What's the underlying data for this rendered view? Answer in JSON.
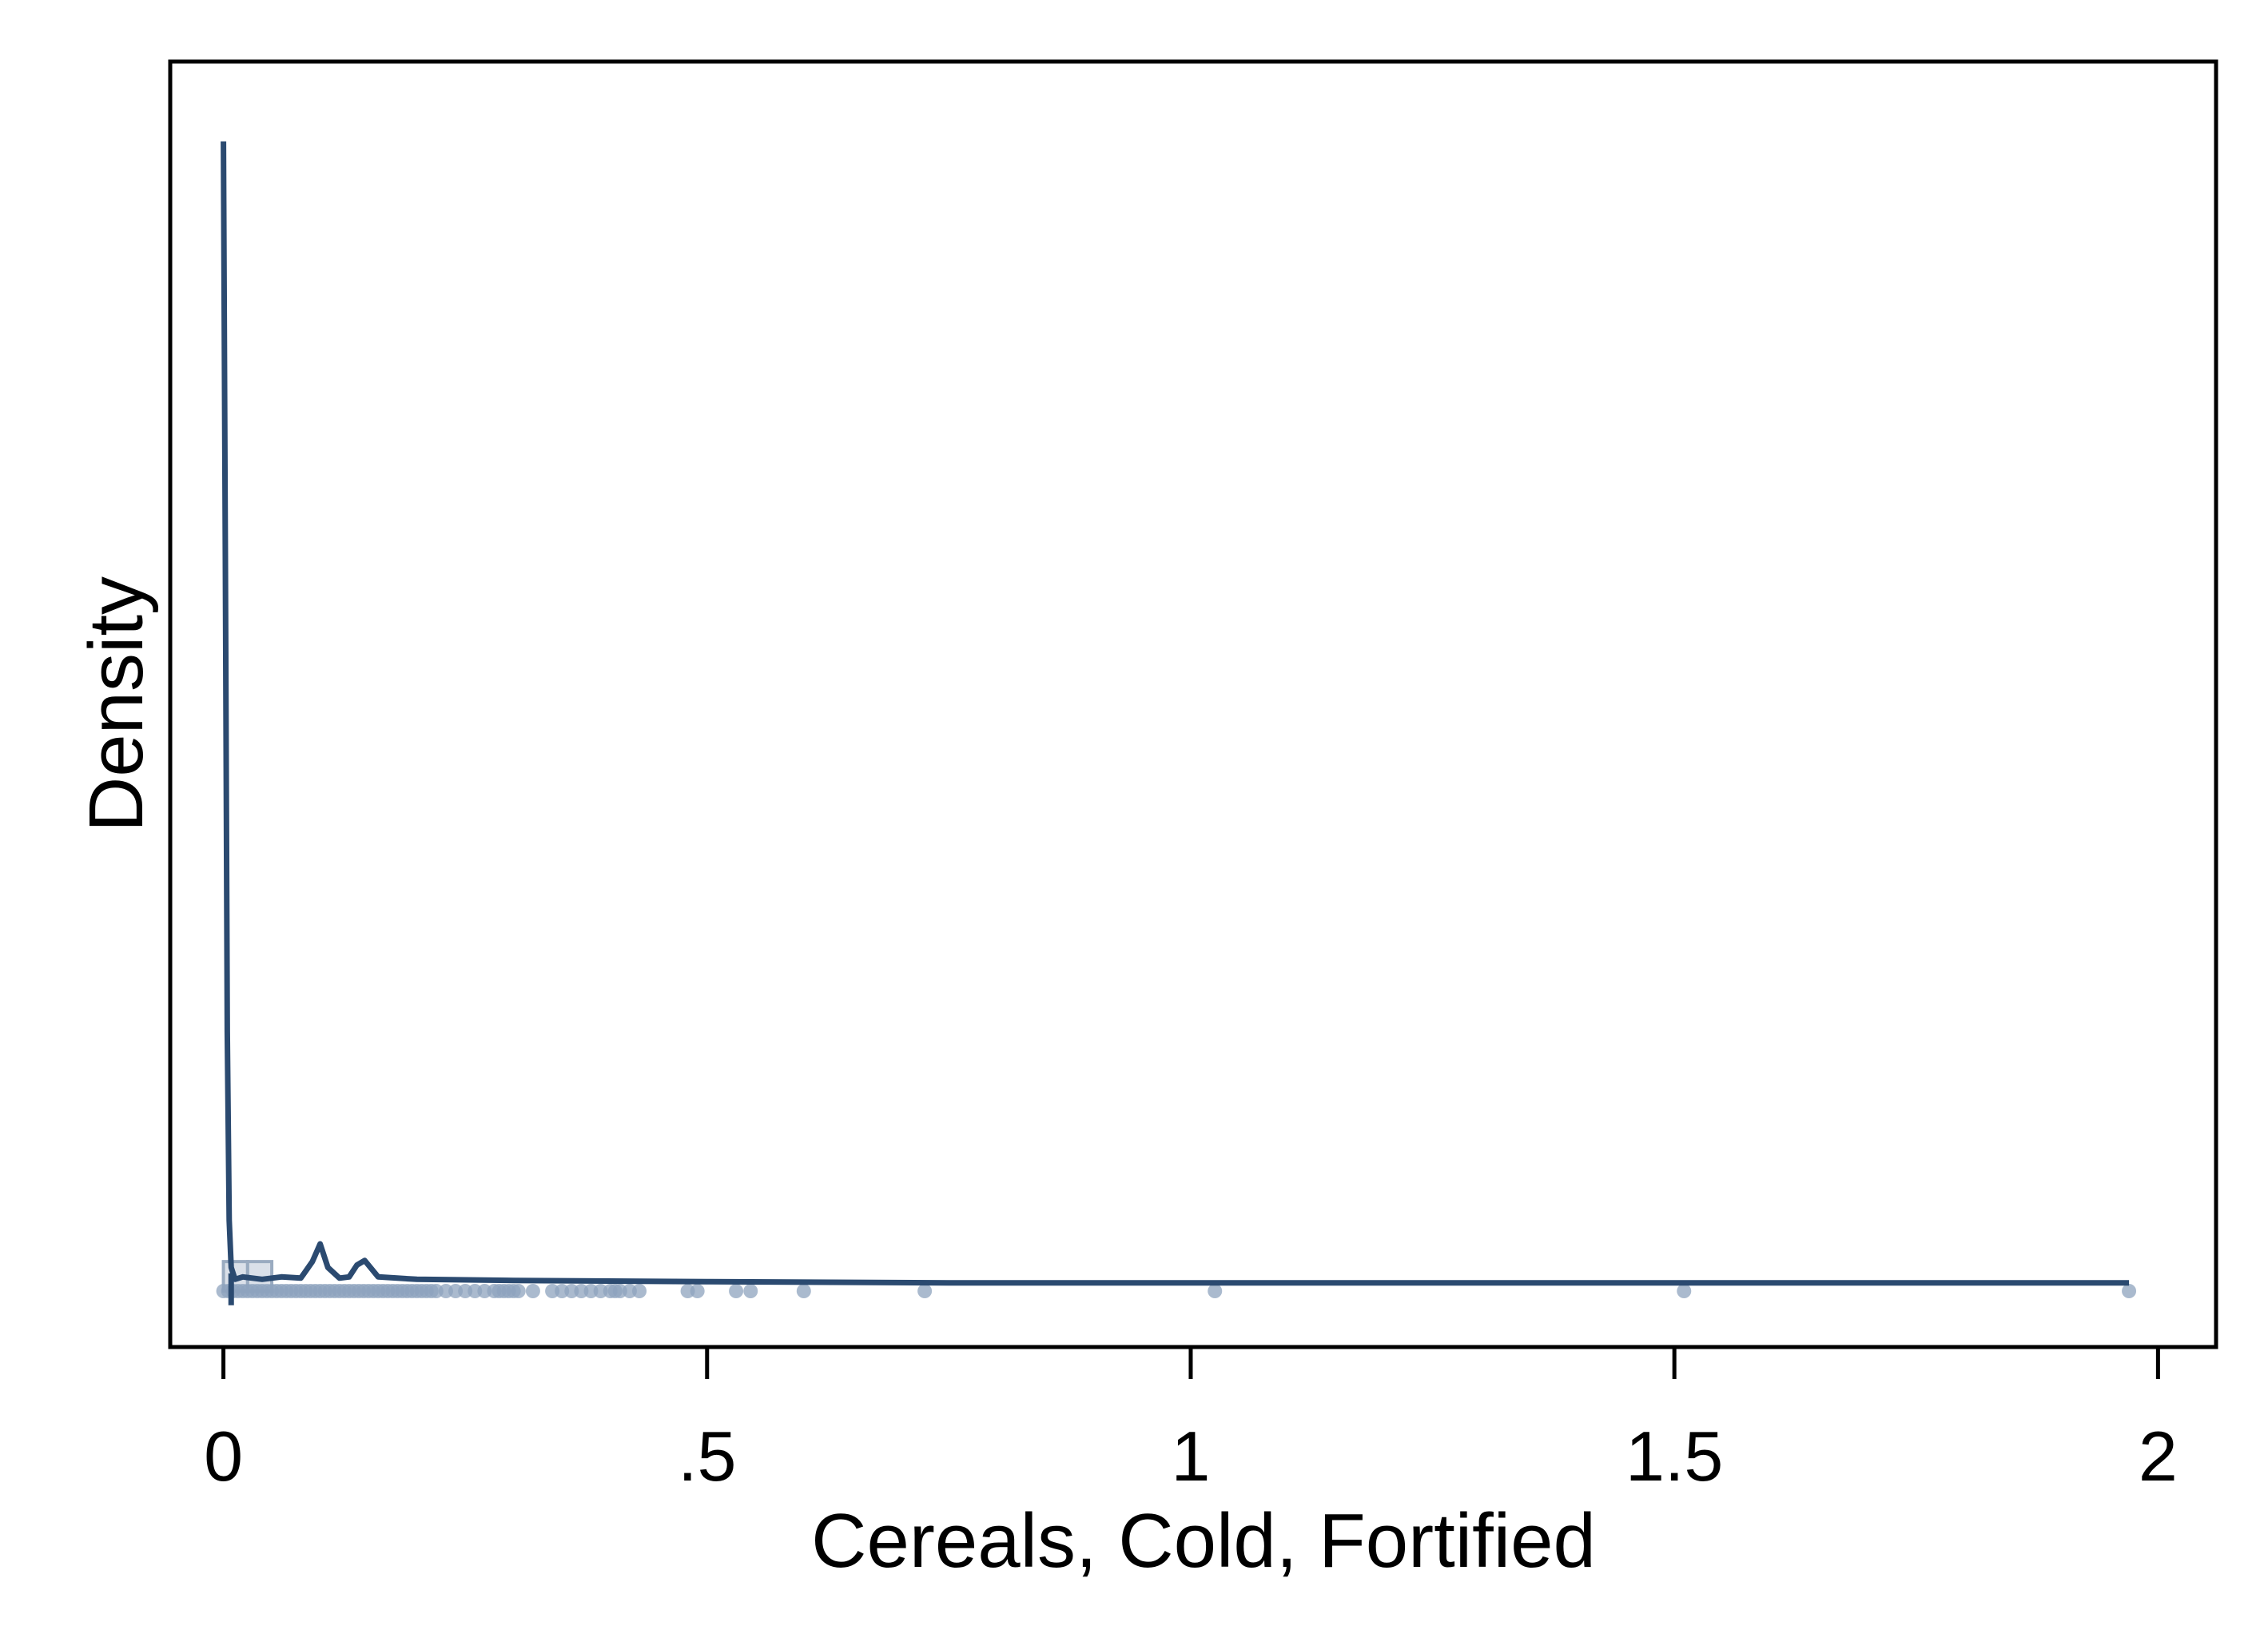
{
  "chart_data": {
    "type": "line",
    "title": "",
    "xlabel": "Cereals, Cold, Fortified",
    "ylabel": "Density",
    "xlim": [
      -0.055,
      2.06
    ],
    "ylim": [
      0,
      1
    ],
    "x_ticks": [
      {
        "value": 0,
        "label": "0"
      },
      {
        "value": 0.5,
        "label": ".5"
      },
      {
        "value": 1,
        "label": "1"
      },
      {
        "value": 1.5,
        "label": "1.5"
      },
      {
        "value": 2,
        "label": "2"
      }
    ],
    "y_ticks_shown": false,
    "grid": false,
    "legend": "none",
    "colors": {
      "line": "#2b4a70",
      "points": "#8ea3bd",
      "histogram_fill": "#d4dbe5",
      "histogram_stroke": "#9aabc0"
    },
    "series": [
      {
        "type": "density",
        "x": [
          0,
          0.002,
          0.004,
          0.006,
          0.008,
          0.012,
          0.02,
          0.04,
          0.06,
          0.08,
          0.092,
          0.1,
          0.108,
          0.12,
          0.13,
          0.138,
          0.146,
          0.16,
          0.2,
          0.3,
          0.5,
          0.75,
          1.0,
          1.25,
          1.5,
          1.75,
          1.97
        ],
        "y": [
          0.975,
          0.62,
          0.22,
          0.06,
          0.02,
          0.01,
          0.012,
          0.01,
          0.012,
          0.011,
          0.025,
          0.04,
          0.02,
          0.011,
          0.012,
          0.022,
          0.026,
          0.012,
          0.01,
          0.009,
          0.008,
          0.007,
          0.007,
          0.007,
          0.007,
          0.007,
          0.007
        ]
      },
      {
        "type": "histogram",
        "bins": [
          {
            "x0": 0,
            "x1": 0.025,
            "density": 0.025
          },
          {
            "x0": 0.025,
            "x1": 0.05,
            "density": 0.025
          }
        ]
      },
      {
        "type": "rug_points",
        "x": [
          0,
          0.005,
          0.01,
          0.015,
          0.02,
          0.025,
          0.03,
          0.035,
          0.04,
          0.045,
          0.05,
          0.055,
          0.06,
          0.065,
          0.07,
          0.075,
          0.08,
          0.085,
          0.09,
          0.095,
          0.1,
          0.105,
          0.11,
          0.115,
          0.12,
          0.125,
          0.13,
          0.135,
          0.14,
          0.145,
          0.15,
          0.155,
          0.16,
          0.165,
          0.17,
          0.175,
          0.18,
          0.185,
          0.19,
          0.195,
          0.2,
          0.205,
          0.21,
          0.215,
          0.22,
          0.23,
          0.24,
          0.25,
          0.26,
          0.27,
          0.28,
          0.285,
          0.29,
          0.295,
          0.3,
          0.305,
          0.32,
          0.34,
          0.35,
          0.36,
          0.37,
          0.38,
          0.39,
          0.4,
          0.405,
          0.41,
          0.42,
          0.43,
          0.48,
          0.49,
          0.53,
          0.545,
          0.6,
          0.725,
          1.025,
          1.51,
          1.97
        ]
      }
    ]
  }
}
